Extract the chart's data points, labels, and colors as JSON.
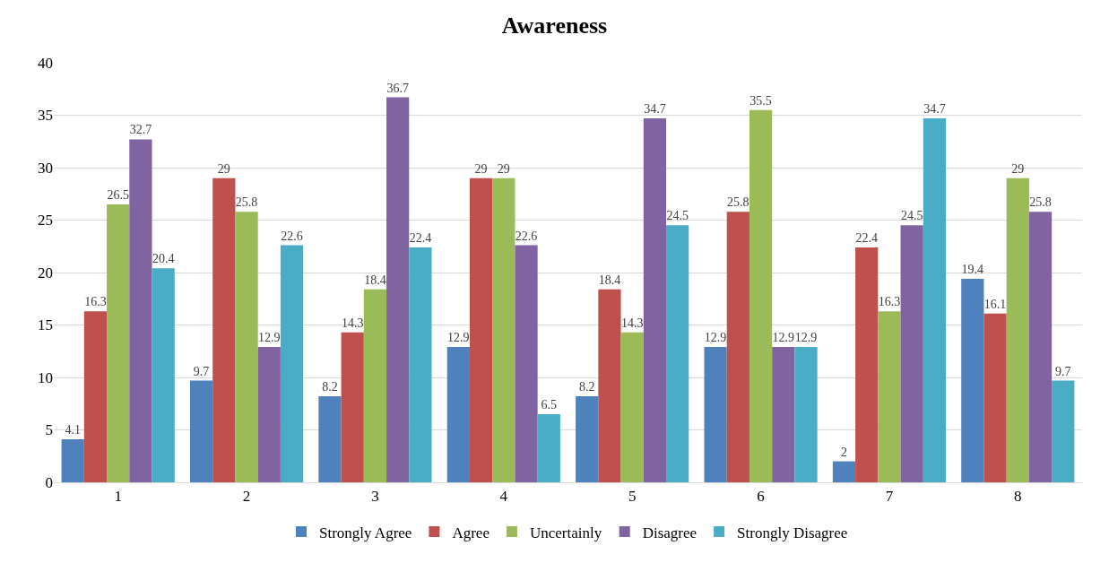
{
  "chart_data": {
    "type": "bar",
    "title": "Awareness",
    "categories": [
      "1",
      "2",
      "3",
      "4",
      "5",
      "6",
      "7",
      "8"
    ],
    "series": [
      {
        "name": "Strongly Agree",
        "color": "#4f81bd",
        "values": [
          4.1,
          9.7,
          8.2,
          12.9,
          8.2,
          12.9,
          2,
          19.4
        ]
      },
      {
        "name": "Agree",
        "color": "#c0504d",
        "values": [
          16.3,
          29,
          14.3,
          29,
          18.4,
          25.8,
          22.4,
          16.1
        ]
      },
      {
        "name": "Uncertainly",
        "color": "#9bbb59",
        "values": [
          26.5,
          25.8,
          18.4,
          29,
          14.3,
          35.5,
          16.3,
          29
        ]
      },
      {
        "name": "Disagree",
        "color": "#8064a2",
        "values": [
          32.7,
          12.9,
          36.7,
          22.6,
          34.7,
          12.9,
          24.5,
          25.8
        ]
      },
      {
        "name": "Strongly Disagree",
        "color": "#4bacc6",
        "values": [
          20.4,
          22.6,
          22.4,
          6.5,
          24.5,
          12.9,
          34.7,
          9.7
        ]
      }
    ],
    "ylim": [
      0,
      40
    ],
    "yticks": [
      0,
      5,
      10,
      15,
      20,
      25,
      30,
      35,
      40
    ],
    "grid": "y",
    "legend": "bottom",
    "data_labels": true
  }
}
